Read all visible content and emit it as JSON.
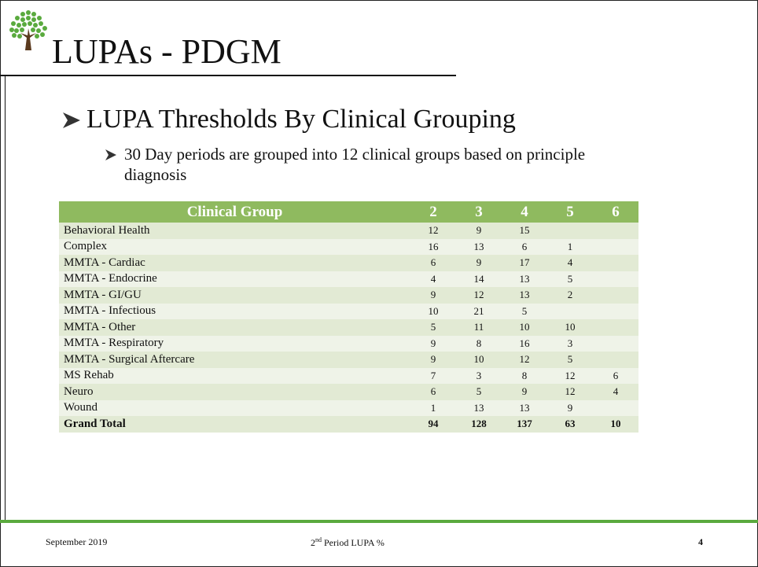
{
  "header": {
    "title": "LUPAs - PDGM"
  },
  "bullets": [
    {
      "text": "LUPA Thresholds By Clinical Grouping",
      "sub": [
        "30 Day periods are grouped into 12 clinical groups based on principle diagnosis"
      ]
    }
  ],
  "table": {
    "header": [
      "Clinical Group",
      "2",
      "3",
      "4",
      "5",
      "6"
    ],
    "rows": [
      [
        "Behavioral Health",
        12,
        9,
        15,
        null,
        null
      ],
      [
        "Complex",
        16,
        13,
        6,
        1,
        null
      ],
      [
        "MMTA - Cardiac",
        6,
        9,
        17,
        4,
        null
      ],
      [
        "MMTA - Endocrine",
        4,
        14,
        13,
        5,
        null
      ],
      [
        "MMTA - GI/GU",
        9,
        12,
        13,
        2,
        null
      ],
      [
        "MMTA - Infectious",
        10,
        21,
        5,
        null,
        null
      ],
      [
        "MMTA - Other",
        5,
        11,
        10,
        10,
        null
      ],
      [
        "MMTA - Respiratory",
        9,
        8,
        16,
        3,
        null
      ],
      [
        "MMTA - Surgical Aftercare",
        9,
        10,
        12,
        5,
        null
      ],
      [
        "MS Rehab",
        7,
        3,
        8,
        12,
        6
      ],
      [
        "Neuro",
        6,
        5,
        9,
        12,
        4
      ],
      [
        "Wound",
        1,
        13,
        13,
        9,
        null
      ]
    ],
    "total": [
      "Grand Total",
      94,
      128,
      137,
      63,
      10
    ]
  },
  "footer": {
    "date": "September 2019",
    "center": [
      "2",
      "nd",
      " Period LUPA %"
    ],
    "page": "4"
  }
}
